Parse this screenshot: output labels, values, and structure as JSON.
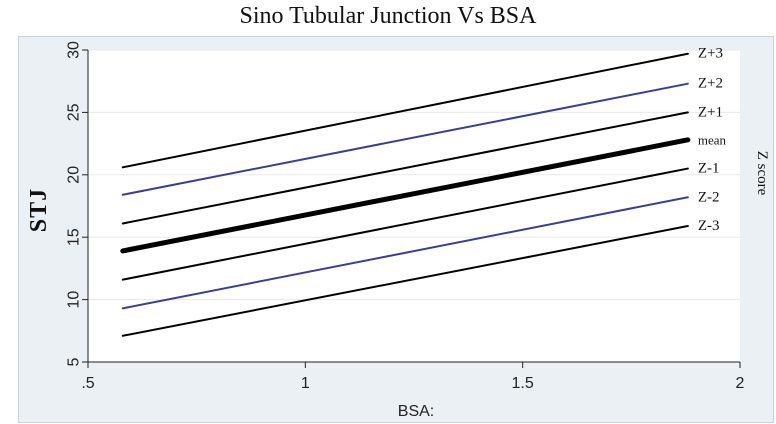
{
  "chart_data": {
    "type": "line",
    "title": "Sino Tubular Junction Vs BSA",
    "xlabel": "BSA:",
    "ylabel": "STJ",
    "xlim": [
      0.5,
      2.0
    ],
    "ylim": [
      5,
      30
    ],
    "x_ticks": [
      ".5",
      "1",
      "1.5",
      "2"
    ],
    "x_tick_values": [
      0.5,
      1.0,
      1.5,
      2.0
    ],
    "y_ticks": [
      "5",
      "10",
      "15",
      "20",
      "25",
      "30"
    ],
    "y_tick_values": [
      5,
      10,
      15,
      20,
      25,
      30
    ],
    "grid": true,
    "legend_title": "Z score",
    "legend_position": "right",
    "series": [
      {
        "name": "Z+3",
        "x": [
          0.58,
          1.88
        ],
        "y": [
          20.6,
          29.7
        ],
        "color": "#000000",
        "weight": "normal"
      },
      {
        "name": "Z+2",
        "x": [
          0.58,
          1.88
        ],
        "y": [
          18.4,
          27.3
        ],
        "color": "#3a3f8f",
        "weight": "normal"
      },
      {
        "name": "Z+1",
        "x": [
          0.58,
          1.88
        ],
        "y": [
          16.1,
          25.0
        ],
        "color": "#000000",
        "weight": "normal"
      },
      {
        "name": "mean",
        "x": [
          0.58,
          1.88
        ],
        "y": [
          13.9,
          22.8
        ],
        "color": "#000000",
        "weight": "bold"
      },
      {
        "name": "Z-1",
        "x": [
          0.58,
          1.88
        ],
        "y": [
          11.6,
          20.5
        ],
        "color": "#000000",
        "weight": "normal"
      },
      {
        "name": "Z-2",
        "x": [
          0.58,
          1.88
        ],
        "y": [
          9.3,
          18.2
        ],
        "color": "#3a3f8f",
        "weight": "normal"
      },
      {
        "name": "Z-3",
        "x": [
          0.58,
          1.88
        ],
        "y": [
          7.1,
          15.9
        ],
        "color": "#000000",
        "weight": "normal"
      }
    ]
  }
}
